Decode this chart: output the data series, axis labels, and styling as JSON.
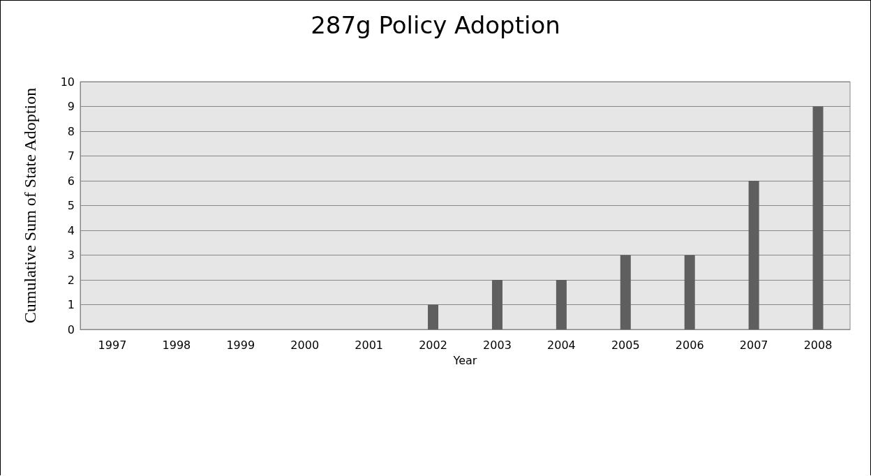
{
  "chart_data": {
    "type": "bar",
    "title": "287g Policy Adoption",
    "xlabel": "Year",
    "ylabel": "Cumulative Sum of State Adoption",
    "categories": [
      "1997",
      "1998",
      "1999",
      "2000",
      "2001",
      "2002",
      "2003",
      "2004",
      "2005",
      "2006",
      "2007",
      "2008"
    ],
    "values": [
      0,
      0,
      0,
      0,
      0,
      1,
      2,
      2,
      3,
      3,
      6,
      9
    ],
    "color": "#5f5f5f",
    "ylim": [
      0,
      10
    ],
    "yticks": [
      0,
      1,
      2,
      3,
      4,
      5,
      6,
      7,
      8,
      9,
      10
    ],
    "grid": "y"
  }
}
